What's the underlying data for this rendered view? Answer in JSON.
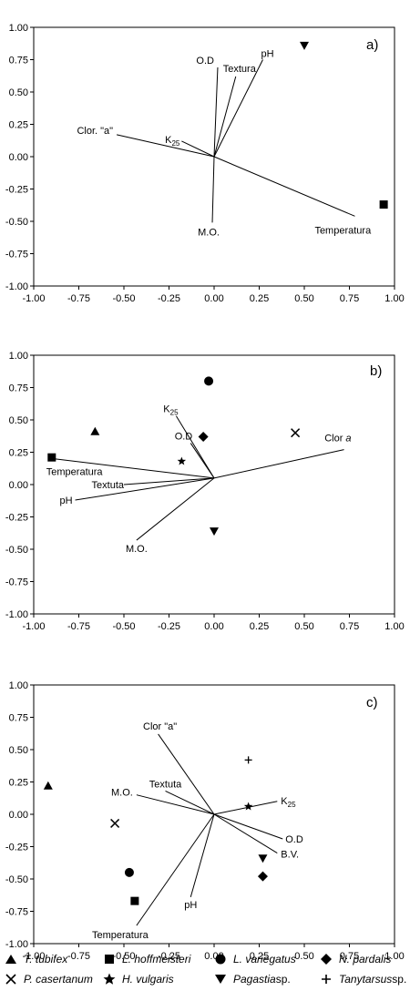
{
  "chart_data": [
    {
      "type": "scatter",
      "panel_label": "a)",
      "xlim": [
        -1.0,
        1.0
      ],
      "ylim": [
        -1.0,
        1.0
      ],
      "x_ticks": [
        "-1.00",
        "-0.75",
        "-0.50",
        "-0.25",
        "0.00",
        "0.25",
        "0.50",
        "0.75",
        "1.00"
      ],
      "y_ticks": [
        "1.00",
        "0.75",
        "0.50",
        "0.25",
        "0.00",
        "-0.25",
        "-0.50",
        "-0.75",
        "-1.00"
      ],
      "origin": [
        0.0,
        0.0
      ],
      "vectors": [
        {
          "label": "O.D",
          "x": 0.02,
          "y": 0.69
        },
        {
          "label": "Textura",
          "x": 0.12,
          "y": 0.62
        },
        {
          "label": "pH",
          "x": 0.27,
          "y": 0.75
        },
        {
          "label": "Clor. \"a\"",
          "x": -0.54,
          "y": 0.17
        },
        {
          "label": "K25",
          "x": -0.18,
          "y": 0.12
        },
        {
          "label": "M.O.",
          "x": -0.01,
          "y": -0.51
        },
        {
          "label": "Temperatura",
          "x": 0.78,
          "y": -0.46
        }
      ],
      "points": [
        {
          "species": "Pagastia sp.",
          "symbol": "triangle-down",
          "x": 0.5,
          "y": 0.86
        },
        {
          "species": "L. hoffmeisteri",
          "symbol": "square",
          "x": 0.94,
          "y": -0.37
        }
      ]
    },
    {
      "type": "scatter",
      "panel_label": "b)",
      "xlim": [
        -1.0,
        1.0
      ],
      "ylim": [
        -1.0,
        1.0
      ],
      "x_ticks": [
        "-1.00",
        "-0.75",
        "-0.50",
        "-0.25",
        "0.00",
        "0.25",
        "0.50",
        "0.75",
        "1.00"
      ],
      "y_ticks": [
        "1.00",
        "0.75",
        "0.50",
        "0.25",
        "0.00",
        "-0.25",
        "-0.50",
        "-0.75",
        "-1.00"
      ],
      "origin": [
        0.0,
        0.05
      ],
      "vectors": [
        {
          "label": "K25",
          "x": -0.21,
          "y": 0.53
        },
        {
          "label": "O.D",
          "x": -0.13,
          "y": 0.32
        },
        {
          "label": "Clor a",
          "x": 0.72,
          "y": 0.27
        },
        {
          "label": "Temperatura",
          "x": -0.89,
          "y": 0.2
        },
        {
          "label": "Textuta",
          "x": -0.5,
          "y": 0.0
        },
        {
          "label": "pH",
          "x": -0.77,
          "y": -0.12
        },
        {
          "label": "M.O.",
          "x": -0.43,
          "y": -0.43
        }
      ],
      "points": [
        {
          "species": "T. tubifex",
          "symbol": "triangle-up",
          "x": -0.66,
          "y": 0.41
        },
        {
          "species": "L. hoffmeisteri",
          "symbol": "square",
          "x": -0.9,
          "y": 0.21
        },
        {
          "species": "L. variegatus",
          "symbol": "circle",
          "x": -0.03,
          "y": 0.8
        },
        {
          "species": "N. pardalis",
          "symbol": "diamond",
          "x": -0.06,
          "y": 0.37
        },
        {
          "species": "P. casertanum",
          "symbol": "cross-x",
          "x": 0.45,
          "y": 0.4
        },
        {
          "species": "H. vulgaris",
          "symbol": "star",
          "x": -0.18,
          "y": 0.18
        },
        {
          "species": "Pagastia sp.",
          "symbol": "triangle-down",
          "x": 0.0,
          "y": -0.36
        }
      ]
    },
    {
      "type": "scatter",
      "panel_label": "c)",
      "xlim": [
        -1.0,
        1.0
      ],
      "ylim": [
        -1.0,
        1.0
      ],
      "x_ticks": [
        "-1.00",
        "-0.75",
        "-0.50",
        "-0.25",
        "0.00",
        "0.25",
        "0.50",
        "0.75",
        "1.00"
      ],
      "y_ticks": [
        "1.00",
        "0.75",
        "0.50",
        "0.25",
        "0.00",
        "-0.25",
        "-0.50",
        "-0.75",
        "-1.00"
      ],
      "origin": [
        0.0,
        0.0
      ],
      "vectors": [
        {
          "label": "Clor \"a\"",
          "x": -0.31,
          "y": 0.62
        },
        {
          "label": "Textuta",
          "x": -0.27,
          "y": 0.18
        },
        {
          "label": "M.O.",
          "x": -0.43,
          "y": 0.15
        },
        {
          "label": "K25",
          "x": 0.35,
          "y": 0.1
        },
        {
          "label": "O.D",
          "x": 0.38,
          "y": -0.19
        },
        {
          "label": "B.V.",
          "x": 0.35,
          "y": -0.3
        },
        {
          "label": "pH",
          "x": -0.13,
          "y": -0.64
        },
        {
          "label": "Temperatura",
          "x": -0.43,
          "y": -0.86
        }
      ],
      "points": [
        {
          "species": "T. tubifex",
          "symbol": "triangle-up",
          "x": -0.92,
          "y": 0.22
        },
        {
          "species": "P. casertanum",
          "symbol": "cross-x",
          "x": -0.55,
          "y": -0.07
        },
        {
          "species": "L. variegatus",
          "symbol": "circle",
          "x": -0.47,
          "y": -0.45
        },
        {
          "species": "L. hoffmeisteri",
          "symbol": "square",
          "x": -0.44,
          "y": -0.67
        },
        {
          "species": "Tanytarsus sp.",
          "symbol": "plus",
          "x": 0.19,
          "y": 0.42
        },
        {
          "species": "H. vulgaris",
          "symbol": "star",
          "x": 0.19,
          "y": 0.06
        },
        {
          "species": "Pagastia sp.",
          "symbol": "triangle-down",
          "x": 0.27,
          "y": -0.34
        },
        {
          "species": "N. pardalis",
          "symbol": "diamond",
          "x": 0.27,
          "y": -0.48
        }
      ]
    }
  ],
  "legend": {
    "items": [
      {
        "symbol": "triangle-up",
        "label": "T. tubifex",
        "rest": ""
      },
      {
        "symbol": "square",
        "label": "L. hoffmeisteri",
        "rest": ""
      },
      {
        "symbol": "circle",
        "label": "L. variegatus",
        "rest": ""
      },
      {
        "symbol": "diamond",
        "label": "N. pardalis",
        "rest": ""
      },
      {
        "symbol": "cross-x",
        "label": "P. casertanum",
        "rest": ""
      },
      {
        "symbol": "star",
        "label": "H. vulgaris",
        "rest": ""
      },
      {
        "symbol": "triangle-down",
        "label": "Pagastia",
        "rest": " sp."
      },
      {
        "symbol": "plus",
        "label": "Tanytarsus",
        "rest": " sp."
      }
    ]
  },
  "colors": {
    "line": "#000000",
    "background": "#ffffff"
  }
}
